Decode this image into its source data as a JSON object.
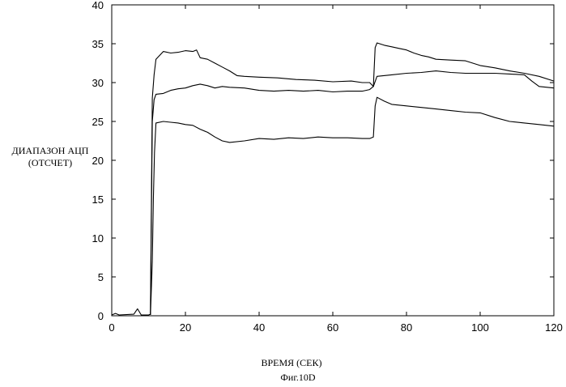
{
  "chart_data": {
    "type": "line",
    "title": "",
    "xlabel": "ВРЕМЯ (СЕК)",
    "ylabel_lines": [
      "ДИАПАЗОН АЦП",
      "(ОТСЧЕТ)"
    ],
    "caption": "Фиг.10D",
    "xlim": [
      0,
      120
    ],
    "ylim": [
      0,
      40
    ],
    "xticks": [
      0,
      20,
      40,
      60,
      80,
      100,
      120
    ],
    "yticks": [
      0,
      5,
      10,
      15,
      20,
      25,
      30,
      35,
      40
    ],
    "grid": false,
    "series": [
      {
        "points": [
          [
            0,
            0.1
          ],
          [
            1,
            0.3
          ],
          [
            2,
            0.1
          ],
          [
            6,
            0.2
          ],
          [
            7,
            0.9
          ],
          [
            8,
            0.1
          ],
          [
            10,
            0.1
          ],
          [
            10.5,
            0.2
          ],
          [
            11,
            28
          ],
          [
            11.5,
            31
          ],
          [
            12,
            33
          ],
          [
            13,
            33.5
          ],
          [
            14,
            34
          ],
          [
            16,
            33.8
          ],
          [
            18,
            33.9
          ],
          [
            20,
            34.1
          ],
          [
            22,
            34.0
          ],
          [
            23,
            34.2
          ],
          [
            24,
            33.2
          ],
          [
            26,
            33.0
          ],
          [
            28,
            32.5
          ],
          [
            30,
            32.0
          ],
          [
            32,
            31.5
          ],
          [
            34,
            30.9
          ],
          [
            36,
            30.8
          ],
          [
            40,
            30.7
          ],
          [
            45,
            30.6
          ],
          [
            50,
            30.4
          ],
          [
            55,
            30.3
          ],
          [
            60,
            30.1
          ],
          [
            65,
            30.2
          ],
          [
            68,
            30.0
          ],
          [
            70,
            30.0
          ],
          [
            71,
            29.5
          ],
          [
            71.5,
            34.5
          ],
          [
            72,
            35.1
          ],
          [
            74,
            34.8
          ],
          [
            76,
            34.6
          ],
          [
            78,
            34.4
          ],
          [
            80,
            34.2
          ],
          [
            82,
            33.8
          ],
          [
            84,
            33.5
          ],
          [
            86,
            33.3
          ],
          [
            88,
            33.0
          ],
          [
            92,
            32.9
          ],
          [
            96,
            32.8
          ],
          [
            100,
            32.2
          ],
          [
            104,
            31.9
          ],
          [
            108,
            31.5
          ],
          [
            112,
            31.2
          ],
          [
            116,
            30.8
          ],
          [
            120,
            30.2
          ]
        ]
      },
      {
        "points": [
          [
            10.5,
            0.1
          ],
          [
            11,
            25
          ],
          [
            11.5,
            27.8
          ],
          [
            12,
            28.5
          ],
          [
            14,
            28.6
          ],
          [
            16,
            29.0
          ],
          [
            18,
            29.2
          ],
          [
            20,
            29.3
          ],
          [
            22,
            29.6
          ],
          [
            24,
            29.8
          ],
          [
            26,
            29.6
          ],
          [
            28,
            29.3
          ],
          [
            30,
            29.5
          ],
          [
            32,
            29.4
          ],
          [
            36,
            29.3
          ],
          [
            40,
            29.0
          ],
          [
            44,
            28.9
          ],
          [
            48,
            29.0
          ],
          [
            52,
            28.9
          ],
          [
            56,
            29.0
          ],
          [
            60,
            28.8
          ],
          [
            64,
            28.9
          ],
          [
            68,
            28.9
          ],
          [
            70,
            29.1
          ],
          [
            71,
            29.5
          ],
          [
            72,
            30.8
          ],
          [
            76,
            31.0
          ],
          [
            80,
            31.2
          ],
          [
            84,
            31.3
          ],
          [
            88,
            31.5
          ],
          [
            92,
            31.3
          ],
          [
            96,
            31.2
          ],
          [
            100,
            31.2
          ],
          [
            104,
            31.2
          ],
          [
            108,
            31.1
          ],
          [
            112,
            31.0
          ],
          [
            114,
            30.2
          ],
          [
            116,
            29.5
          ],
          [
            120,
            29.3
          ]
        ]
      },
      {
        "points": [
          [
            10.5,
            0.1
          ],
          [
            11,
            7
          ],
          [
            11.3,
            15
          ],
          [
            11.6,
            21
          ],
          [
            12,
            24.8
          ],
          [
            14,
            25.0
          ],
          [
            16,
            24.9
          ],
          [
            18,
            24.8
          ],
          [
            20,
            24.6
          ],
          [
            22,
            24.5
          ],
          [
            24,
            24.0
          ],
          [
            26,
            23.6
          ],
          [
            28,
            23.0
          ],
          [
            30,
            22.5
          ],
          [
            32,
            22.3
          ],
          [
            36,
            22.5
          ],
          [
            40,
            22.8
          ],
          [
            44,
            22.7
          ],
          [
            48,
            22.9
          ],
          [
            52,
            22.8
          ],
          [
            56,
            23.0
          ],
          [
            60,
            22.9
          ],
          [
            64,
            22.9
          ],
          [
            68,
            22.8
          ],
          [
            70,
            22.8
          ],
          [
            71,
            23.0
          ],
          [
            71.5,
            27.0
          ],
          [
            72,
            28.1
          ],
          [
            74,
            27.6
          ],
          [
            76,
            27.2
          ],
          [
            80,
            27.0
          ],
          [
            84,
            26.8
          ],
          [
            88,
            26.6
          ],
          [
            92,
            26.4
          ],
          [
            96,
            26.2
          ],
          [
            100,
            26.1
          ],
          [
            104,
            25.5
          ],
          [
            108,
            25.0
          ],
          [
            112,
            24.8
          ],
          [
            116,
            24.6
          ],
          [
            120,
            24.4
          ]
        ]
      }
    ]
  }
}
